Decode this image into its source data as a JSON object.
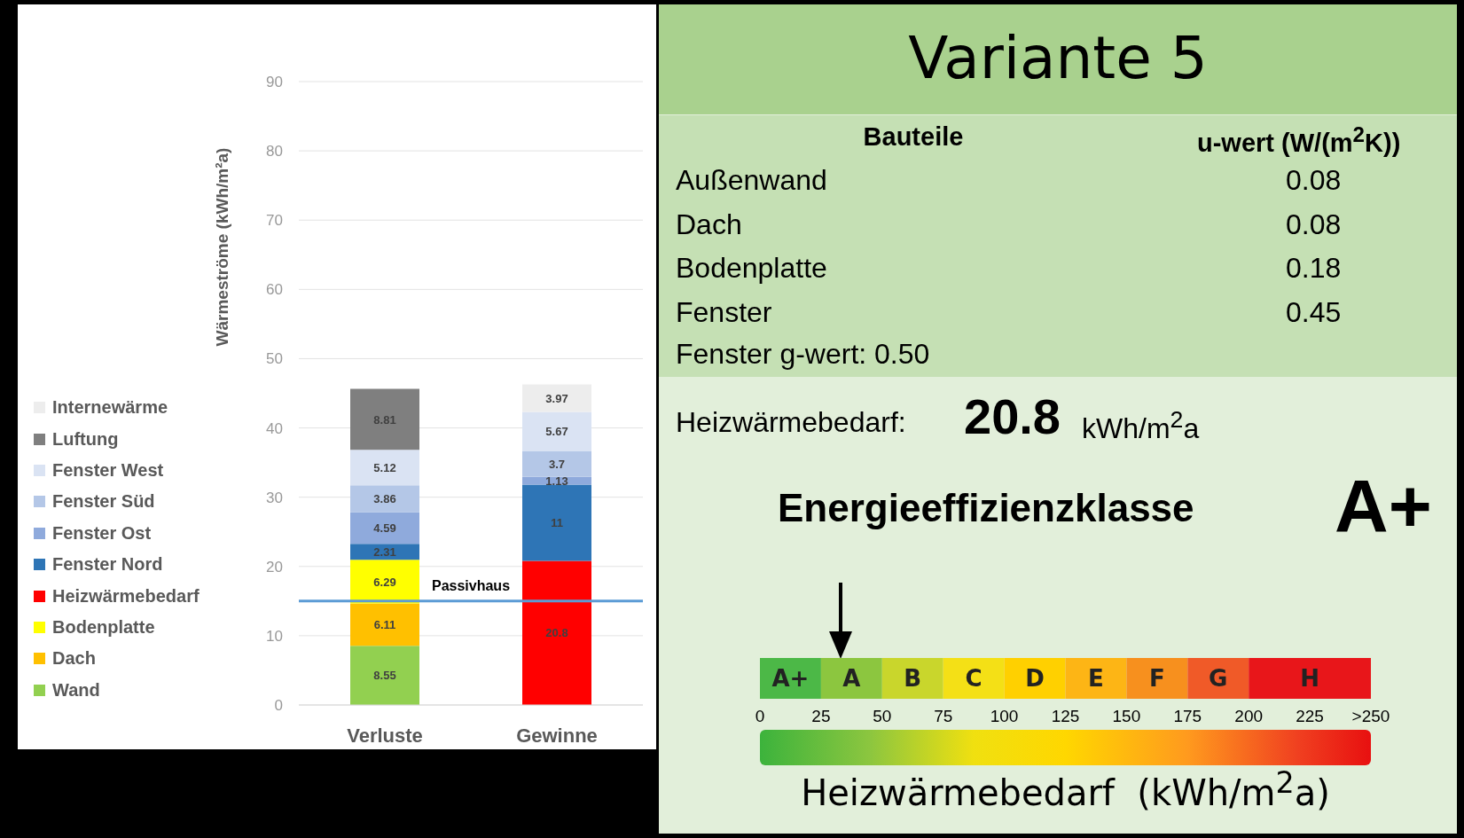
{
  "chart_data": [
    {
      "type": "bar",
      "stacked": true,
      "ylabel": "Wärmeströme (kWh/m²a)",
      "categories": [
        "Verluste",
        "Gewinne"
      ],
      "ylim": [
        0,
        90
      ],
      "yticks": [
        0,
        10,
        20,
        30,
        40,
        50,
        60,
        70,
        80,
        90
      ],
      "grid": "y",
      "legend": "left",
      "data_labels": true,
      "series": [
        {
          "name": "Wand",
          "color": "#92d050",
          "values": [
            8.55,
            null
          ]
        },
        {
          "name": "Dach",
          "color": "#ffc000",
          "values": [
            6.11,
            null
          ]
        },
        {
          "name": "Bodenplatte",
          "color": "#ffff00",
          "values": [
            6.29,
            null
          ]
        },
        {
          "name": "Heizwärmebedarf",
          "color": "#ff0000",
          "values": [
            null,
            20.8
          ]
        },
        {
          "name": "Fenster Nord",
          "color": "#2e75b6",
          "values": [
            2.31,
            11
          ]
        },
        {
          "name": "Fenster Ost",
          "color": "#8faadc",
          "values": [
            4.59,
            1.13
          ]
        },
        {
          "name": "Fenster Süd",
          "color": "#b4c7e7",
          "values": [
            3.86,
            3.7
          ]
        },
        {
          "name": "Fenster West",
          "color": "#dae3f3",
          "values": [
            5.12,
            5.67
          ]
        },
        {
          "name": "Luftung",
          "color": "#7f7f7f",
          "values": [
            8.81,
            null
          ]
        },
        {
          "name": "Internewärme",
          "color": "#ededed",
          "values": [
            null,
            3.97
          ]
        }
      ],
      "ref_lines": [
        {
          "axis": "y",
          "value": 15,
          "label": "Passivhaus",
          "color": "#5b9bd5"
        }
      ]
    },
    {
      "type": "other",
      "title": "Variante 5",
      "annotations": [
        "Bauteile",
        "u-wert (W/(m$^{2}$K))",
        "Außenwand",
        "0.08",
        "Dach",
        "0.08",
        "Bodenplatte",
        "0.18",
        "Fenster",
        "0.45",
        "Fenster g-wert: 0.50",
        "Heizwärmebedarf:",
        "20.8",
        "kWh/m$^{2}$a",
        "Energieeffizienzklasse",
        "A+"
      ]
    },
    {
      "type": "bar",
      "orientation": "horizontal",
      "stacked": true,
      "categories": [
        null
      ],
      "xlabel": "Heizwärmebedarf  (kWh/m$^{2}$a)",
      "xlim": [
        0,
        250
      ],
      "xticks": [
        0,
        25,
        50,
        75,
        100,
        125,
        150,
        175,
        200,
        225,
        {
          "value": 250,
          "label": ">250"
        }
      ],
      "series": [
        {
          "name": "A+",
          "color": "#4cb847",
          "values": [
            25
          ]
        },
        {
          "name": "A",
          "color": "#8cc63f",
          "values": [
            25
          ]
        },
        {
          "name": "B",
          "color": "#c9d62c",
          "values": [
            25
          ]
        },
        {
          "name": "C",
          "color": "#f4e016",
          "values": [
            25
          ]
        },
        {
          "name": "D",
          "color": "#ffd000",
          "values": [
            25
          ]
        },
        {
          "name": "E",
          "color": "#fdb515",
          "values": [
            25
          ]
        },
        {
          "name": "F",
          "color": "#f7901e",
          "values": [
            25
          ]
        },
        {
          "name": "G",
          "color": "#f05a28",
          "values": [
            25
          ]
        },
        {
          "name": "H",
          "color": "#e8161a",
          "values": [
            50
          ]
        }
      ]
    }
  ]
}
